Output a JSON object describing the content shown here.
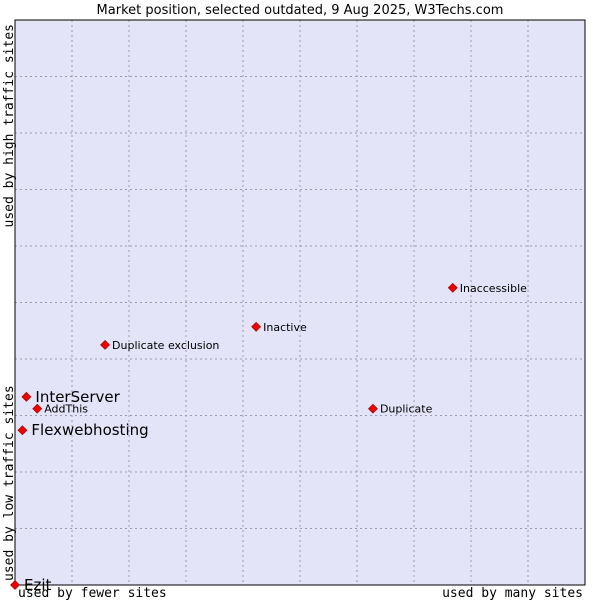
{
  "chart_data": {
    "type": "scatter",
    "title": "Market position, selected outdated, 9 Aug 2025, W3Techs.com",
    "xlabel_low": "used by fewer sites",
    "xlabel_high": "used by many sites",
    "ylabel_low": "used by low traffic sites",
    "ylabel_high": "used by high traffic sites",
    "xlim": [
      0,
      100
    ],
    "ylim": [
      0,
      100
    ],
    "grid": true,
    "colors": {
      "plot_bg": "#e4e4f8",
      "grid": "#9a9ab4",
      "marker": "#ee0000"
    },
    "points": [
      {
        "name": "InterServer",
        "x": 2.0,
        "y": 33.3,
        "size": "big"
      },
      {
        "name": "AddThis",
        "x": 3.9,
        "y": 31.2,
        "size": "small"
      },
      {
        "name": "Flexwebhosting",
        "x": 1.3,
        "y": 27.4,
        "size": "big"
      },
      {
        "name": "Ezit",
        "x": 0.0,
        "y": 0.0,
        "size": "big"
      },
      {
        "name": "Duplicate exclusion",
        "x": 15.8,
        "y": 42.5,
        "size": "small"
      },
      {
        "name": "Inactive",
        "x": 42.3,
        "y": 45.7,
        "size": "small"
      },
      {
        "name": "Duplicate",
        "x": 62.8,
        "y": 31.2,
        "size": "small"
      },
      {
        "name": "Inaccessible",
        "x": 76.8,
        "y": 52.6,
        "size": "small"
      }
    ]
  }
}
